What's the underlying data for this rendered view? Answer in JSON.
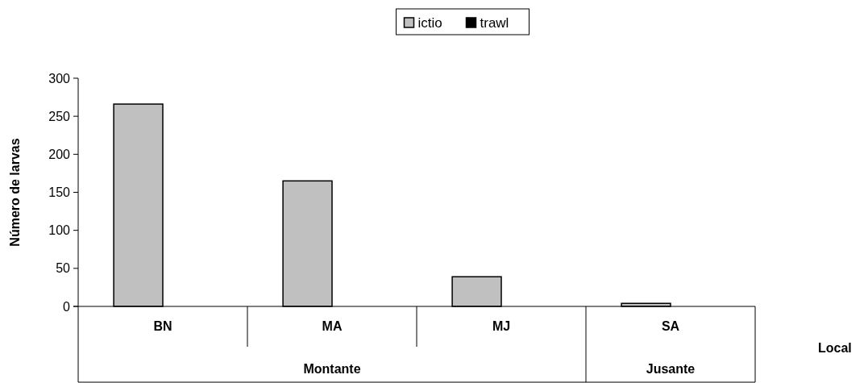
{
  "chart_data": {
    "type": "bar",
    "categories": [
      "BN",
      "MA",
      "MJ",
      "SA"
    ],
    "series": [
      {
        "name": "ictio",
        "color": "#c0c0c0",
        "values": [
          266,
          165,
          39,
          4
        ]
      },
      {
        "name": "trawl",
        "color": "#000000",
        "values": [
          0,
          0,
          0,
          0
        ]
      }
    ],
    "ylim": [
      0,
      300
    ],
    "yticks": [
      0,
      50,
      100,
      150,
      200,
      250,
      300
    ],
    "ylabel": "Número de larvas",
    "xlabel": "Local",
    "annotations": [
      "Montante",
      "Jusante"
    ],
    "legend": "top",
    "grid": false
  }
}
